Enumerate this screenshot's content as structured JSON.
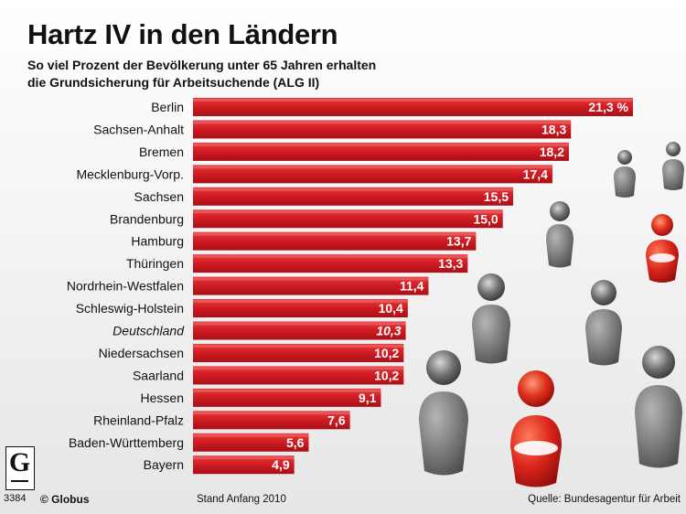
{
  "header": {
    "title": "Hartz IV in den Ländern",
    "subtitle_line1": "So viel Prozent der Bevölkerung unter 65 Jahren erhalten",
    "subtitle_line2": "die Grundsicherung für Arbeitsuchende (ALG II)"
  },
  "footer": {
    "logo_letter": "G",
    "logo_number": "3384",
    "copyright": "© Globus",
    "date": "Stand Anfang 2010",
    "source": "Quelle: Bundesagentur für Arbeit"
  },
  "colors": {
    "bar_dark": "#b8121b",
    "bar_light": "#e02a2e",
    "person_gray": "#8c8c8c",
    "person_red": "#d42020"
  },
  "chart_data": {
    "type": "bar",
    "orientation": "horizontal",
    "categories": [
      "Berlin",
      "Sachsen-Anhalt",
      "Bremen",
      "Mecklenburg-Vorp.",
      "Sachsen",
      "Brandenburg",
      "Hamburg",
      "Thüringen",
      "Nordrhein-Westfalen",
      "Schleswig-Holstein",
      "Deutschland",
      "Niedersachsen",
      "Saarland",
      "Hessen",
      "Rheinland-Pfalz",
      "Baden-Württemberg",
      "Bayern"
    ],
    "values": [
      21.3,
      18.3,
      18.2,
      17.4,
      15.5,
      15.0,
      13.7,
      13.3,
      11.4,
      10.4,
      10.3,
      10.2,
      10.2,
      9.1,
      7.6,
      5.6,
      4.9
    ],
    "value_labels": [
      "21,3 %",
      "18,3",
      "18,2",
      "17,4",
      "15,5",
      "15,0",
      "13,7",
      "13,3",
      "11,4",
      "10,4",
      "10,3",
      "10,2",
      "10,2",
      "9,1",
      "7,6",
      "5,6",
      "4,9"
    ],
    "highlight": "Deutschland",
    "unit": "%",
    "xlim": [
      0,
      21.3
    ]
  }
}
